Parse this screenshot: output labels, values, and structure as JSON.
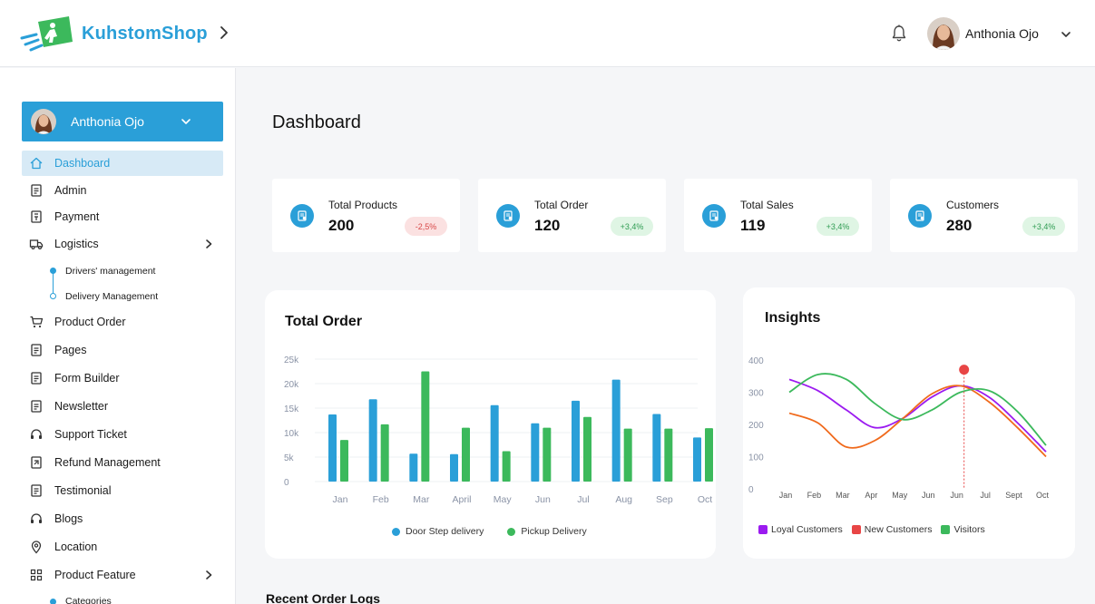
{
  "header": {
    "brand": "KuhstomShop",
    "user_name": "Anthonia Ojo",
    "icons": [
      "logo-icon",
      "chevron-right-icon",
      "bell-icon",
      "chevron-down-icon"
    ]
  },
  "sidebar": {
    "user_name": "Anthonia Ojo",
    "items": [
      {
        "label": "Dashboard",
        "icon": "home-icon"
      },
      {
        "label": "Admin",
        "icon": "document-icon"
      },
      {
        "label": "Payment",
        "icon": "payment-icon"
      },
      {
        "label": "Logistics",
        "icon": "truck-icon"
      },
      {
        "label": "Product Order",
        "icon": "cart-icon"
      },
      {
        "label": "Pages",
        "icon": "document-icon"
      },
      {
        "label": "Form Builder",
        "icon": "document-icon"
      },
      {
        "label": "Newsletter",
        "icon": "document-icon"
      },
      {
        "label": "Support Ticket",
        "icon": "headset-icon"
      },
      {
        "label": "Refund Management",
        "icon": "refund-icon"
      },
      {
        "label": "Testimonial",
        "icon": "document-icon"
      },
      {
        "label": "Blogs",
        "icon": "headset-icon"
      },
      {
        "label": "Location",
        "icon": "location-icon"
      },
      {
        "label": "Product Feature",
        "icon": "grid-icon"
      }
    ],
    "logistics_sub": [
      "Drivers' management",
      "Delivery Management"
    ],
    "product_feature_sub": [
      "Categories"
    ]
  },
  "main": {
    "title": "Dashboard",
    "stats": [
      {
        "label": "Total Products",
        "value": "200",
        "change": "-2,5%",
        "trend": "negative"
      },
      {
        "label": "Total Order",
        "value": "120",
        "change": "+3,4%",
        "trend": "positive"
      },
      {
        "label": "Total Sales",
        "value": "119",
        "change": "+3,4%",
        "trend": "positive"
      },
      {
        "label": "Customers",
        "value": "280",
        "change": "+3,4%",
        "trend": "positive"
      }
    ],
    "recent_title": "Recent Order Logs"
  },
  "colors": {
    "accent": "#2a9fd8",
    "door_step": "#2a9fd8",
    "pickup": "#3cb95c",
    "loyal": "#9b1bf0",
    "new": "#f06a1c",
    "visitors": "#3cb95c",
    "marker": "#e84545"
  },
  "chart_data": [
    {
      "type": "bar",
      "title": "Total Order",
      "categories": [
        "Jan",
        "Feb",
        "Mar",
        "April",
        "May",
        "Jun",
        "Jul",
        "Aug",
        "Sep",
        "Oct"
      ],
      "y_ticks": [
        "0",
        "5k",
        "10k",
        "15k",
        "20k",
        "25k"
      ],
      "ylim": [
        0,
        25000
      ],
      "series": [
        {
          "name": "Door Step delivery",
          "values": [
            13700,
            16800,
            5700,
            5600,
            15600,
            11900,
            16500,
            20800,
            13800,
            9000
          ]
        },
        {
          "name": "Pickup Delivery",
          "values": [
            8500,
            11700,
            22500,
            11000,
            6200,
            11000,
            13200,
            10800,
            10800,
            10900
          ]
        }
      ],
      "grid": true,
      "legend": "bottom"
    },
    {
      "type": "line",
      "title": "Insights",
      "x": [
        "Jan",
        "Feb",
        "Mar",
        "Apr",
        "May",
        "Jun",
        "Jun",
        "Jul",
        "Sept",
        "Oct"
      ],
      "y_ticks": [
        "0",
        "100",
        "200",
        "300",
        "400"
      ],
      "ylim": [
        0,
        400
      ],
      "series": [
        {
          "name": "Loyal Customers",
          "values": [
            340,
            305,
            245,
            190,
            220,
            285,
            320,
            285,
            205,
            115
          ]
        },
        {
          "name": "New Customers",
          "values": [
            235,
            205,
            130,
            150,
            220,
            295,
            320,
            270,
            190,
            100
          ]
        },
        {
          "name": "Visitors",
          "values": [
            300,
            355,
            340,
            265,
            215,
            245,
            300,
            305,
            240,
            135
          ]
        }
      ],
      "marker": {
        "x_index": 6,
        "value": 370
      },
      "legend": "bottom"
    }
  ]
}
